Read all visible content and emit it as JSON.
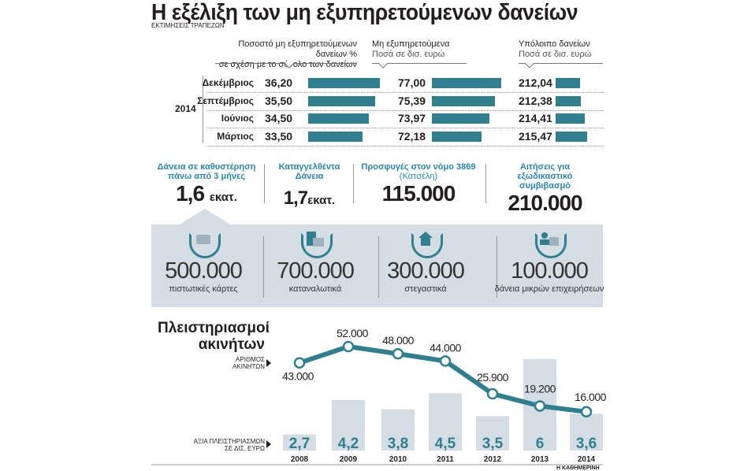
{
  "title": "Η εξέλιξη των μη εξυπηρετούμενων δανείων",
  "subtitle": "ΕΚΤΙΜΗΣΕΙΣ ΤΡΑΠΕΖΩΝ",
  "colors": {
    "teal": "#2f7f8f",
    "header_blue": "#2a86b0",
    "panel": "#d3dde3",
    "bar_gray": "#d3dde3"
  },
  "table": {
    "year": "2014",
    "col1_header": [
      "Ποσοστό μη εξυπηρετούμενων δανείων %",
      "σε σχέση με το σύνολο των δανείων"
    ],
    "col2_header": [
      "Μη εξυπηρετούμενα",
      "Ποσά σε δισ. ευρώ"
    ],
    "col3_header": [
      "Υπόλοιπο δανείων",
      "Ποσά σε δισ. ευρώ"
    ],
    "rows": [
      {
        "month": "Δεκέμβριος",
        "pct": "36,20",
        "npl": "77,00",
        "loans": "212,04"
      },
      {
        "month": "Σεπτέμβριος",
        "pct": "35,50",
        "npl": "75,39",
        "loans": "212,38"
      },
      {
        "month": "Ιούνιος",
        "pct": "34,50",
        "npl": "73,97",
        "loans": "214,41"
      },
      {
        "month": "Μάρτιος",
        "pct": "33,50",
        "npl": "72,18",
        "loans": "215,47"
      }
    ]
  },
  "stats": [
    {
      "header": "Δάνεια σε καθυστέρηση πάνω από 3 μήνες",
      "value": "1,6",
      "unit": "εκατ."
    },
    {
      "header": "Καταγγελθέντα Δάνεια",
      "value": "1,7",
      "unit": "εκατ."
    },
    {
      "header": "Προσφυγές στον νόμο 3869",
      "note": "(Κατσέλη)",
      "value": "115.000",
      "unit": ""
    },
    {
      "header": "Αιτήσεις για εξωδικαστικό συμβιβασμό",
      "value": "210.000",
      "unit": ""
    }
  ],
  "categories": [
    {
      "icon": "credit-card-icon",
      "value": "500.000",
      "label": "πιστωτικές κάρτες"
    },
    {
      "icon": "shopping-bag-icon",
      "value": "700.000",
      "label": "καταναλωτικά"
    },
    {
      "icon": "house-icon",
      "value": "300.000",
      "label": "στεγαστικά"
    },
    {
      "icon": "business-people-icon",
      "value": "100.000",
      "label": "δάνεια μικρών επιχειρήσεων"
    }
  ],
  "chart_data": {
    "type": "line+bar",
    "title": "Πλειστηριασμοί ακινήτων",
    "categories": [
      "2008",
      "2009",
      "2010",
      "2011",
      "2012",
      "2013",
      "2014"
    ],
    "series": [
      {
        "name": "ΑΡΙΘΜΟΣ ΑΚΙΝΗΤΩΝ",
        "type": "line",
        "values": [
          43000,
          52000,
          48000,
          44000,
          25900,
          19200,
          16000
        ],
        "labels": [
          "43.000",
          "52.000",
          "48.000",
          "44.000",
          "25.900",
          "19.200",
          "16.000"
        ]
      },
      {
        "name": "ΑΞΙΑ ΠΛΕΙΣΤΗΡΙΑΣΜΩΝ ΣΕ ΔΙΣ. ΕΥΡΩ",
        "type": "bar",
        "values": [
          2.7,
          4.2,
          3.8,
          4.5,
          3.5,
          6,
          3.6
        ],
        "labels": [
          "2,7",
          "4,2",
          "3,8",
          "4,5",
          "3,5",
          "6",
          "3,6"
        ]
      }
    ],
    "line_legend": [
      "ΑΡΙΘΜΟΣ",
      "ΑΚΙΝΗΤΩΝ"
    ],
    "bar_legend": [
      "ΑΞΙΑ ΠΛΕΙΣΤΗΡΙΑΣΜΩΝ",
      "ΣΕ ΔΙΣ. ΕΥΡΩ"
    ]
  },
  "source": "Η ΚΑΘΗΜΕΡΙΝΗ"
}
